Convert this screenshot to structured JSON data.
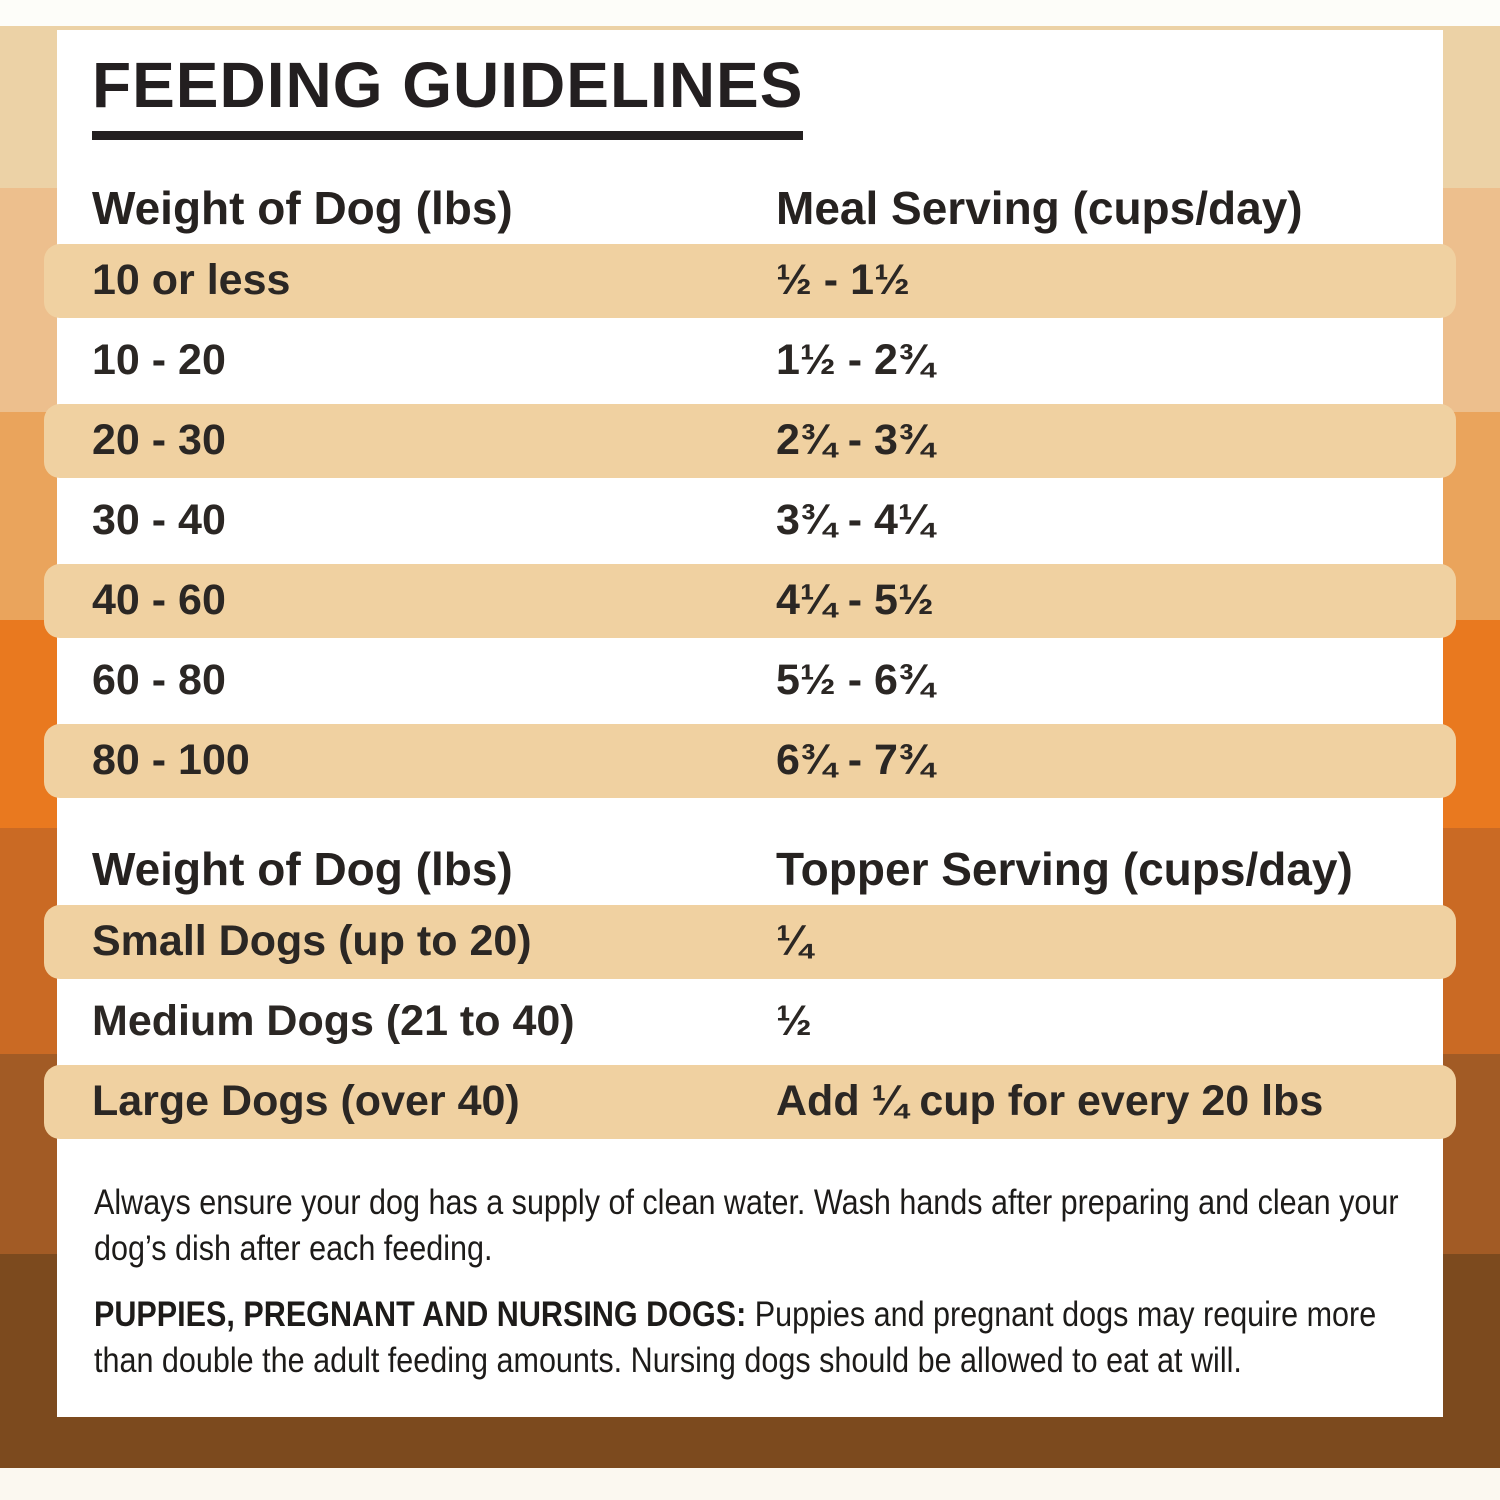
{
  "title": "FEEDING GUIDELINES",
  "meal_table": {
    "headers": {
      "weight": "Weight of Dog (lbs)",
      "serving": "Meal Serving (cups/day)"
    },
    "rows": [
      {
        "weight": "10 or less",
        "serving": "½ - 1½"
      },
      {
        "weight": "10 - 20",
        "serving": "1½ - 2¾"
      },
      {
        "weight": "20 - 30",
        "serving": "2¾ - 3¾"
      },
      {
        "weight": "30 - 40",
        "serving": "3¾ - 4¼"
      },
      {
        "weight": "40 - 60",
        "serving": "4¼ - 5½"
      },
      {
        "weight": "60 - 80",
        "serving": "5½ - 6¾"
      },
      {
        "weight": "80 - 100",
        "serving": "6¾ - 7¾"
      }
    ]
  },
  "topper_table": {
    "headers": {
      "weight": "Weight of Dog (lbs)",
      "serving": "Topper Serving (cups/day)"
    },
    "rows": [
      {
        "weight": "Small Dogs (up to 20)",
        "serving": "¼"
      },
      {
        "weight": "Medium Dogs (21 to 40)",
        "serving": "½"
      },
      {
        "weight": "Large Dogs (over 40)",
        "serving": "Add ¼ cup for every 20 lbs"
      }
    ]
  },
  "notes": {
    "water": "Always ensure your dog has a supply of clean water. Wash hands after preparing and clean your dog’s dish after each feeding.",
    "special_label": "PUPPIES, PREGNANT AND NURSING DOGS:",
    "special_text": "Puppies and pregnant dogs may require more than double the adult feeding amounts. Nursing dogs should be allowed to eat at will."
  },
  "colors": {
    "row_band": "#f0d1a1",
    "text_dark": "#231f20",
    "stripes": [
      "#fdfdf9",
      "#ecd2a6",
      "#edbf8d",
      "#eaa45c",
      "#e9791f",
      "#ca6a24",
      "#a25b25",
      "#7c4a1e",
      "#fbf8f0"
    ]
  }
}
